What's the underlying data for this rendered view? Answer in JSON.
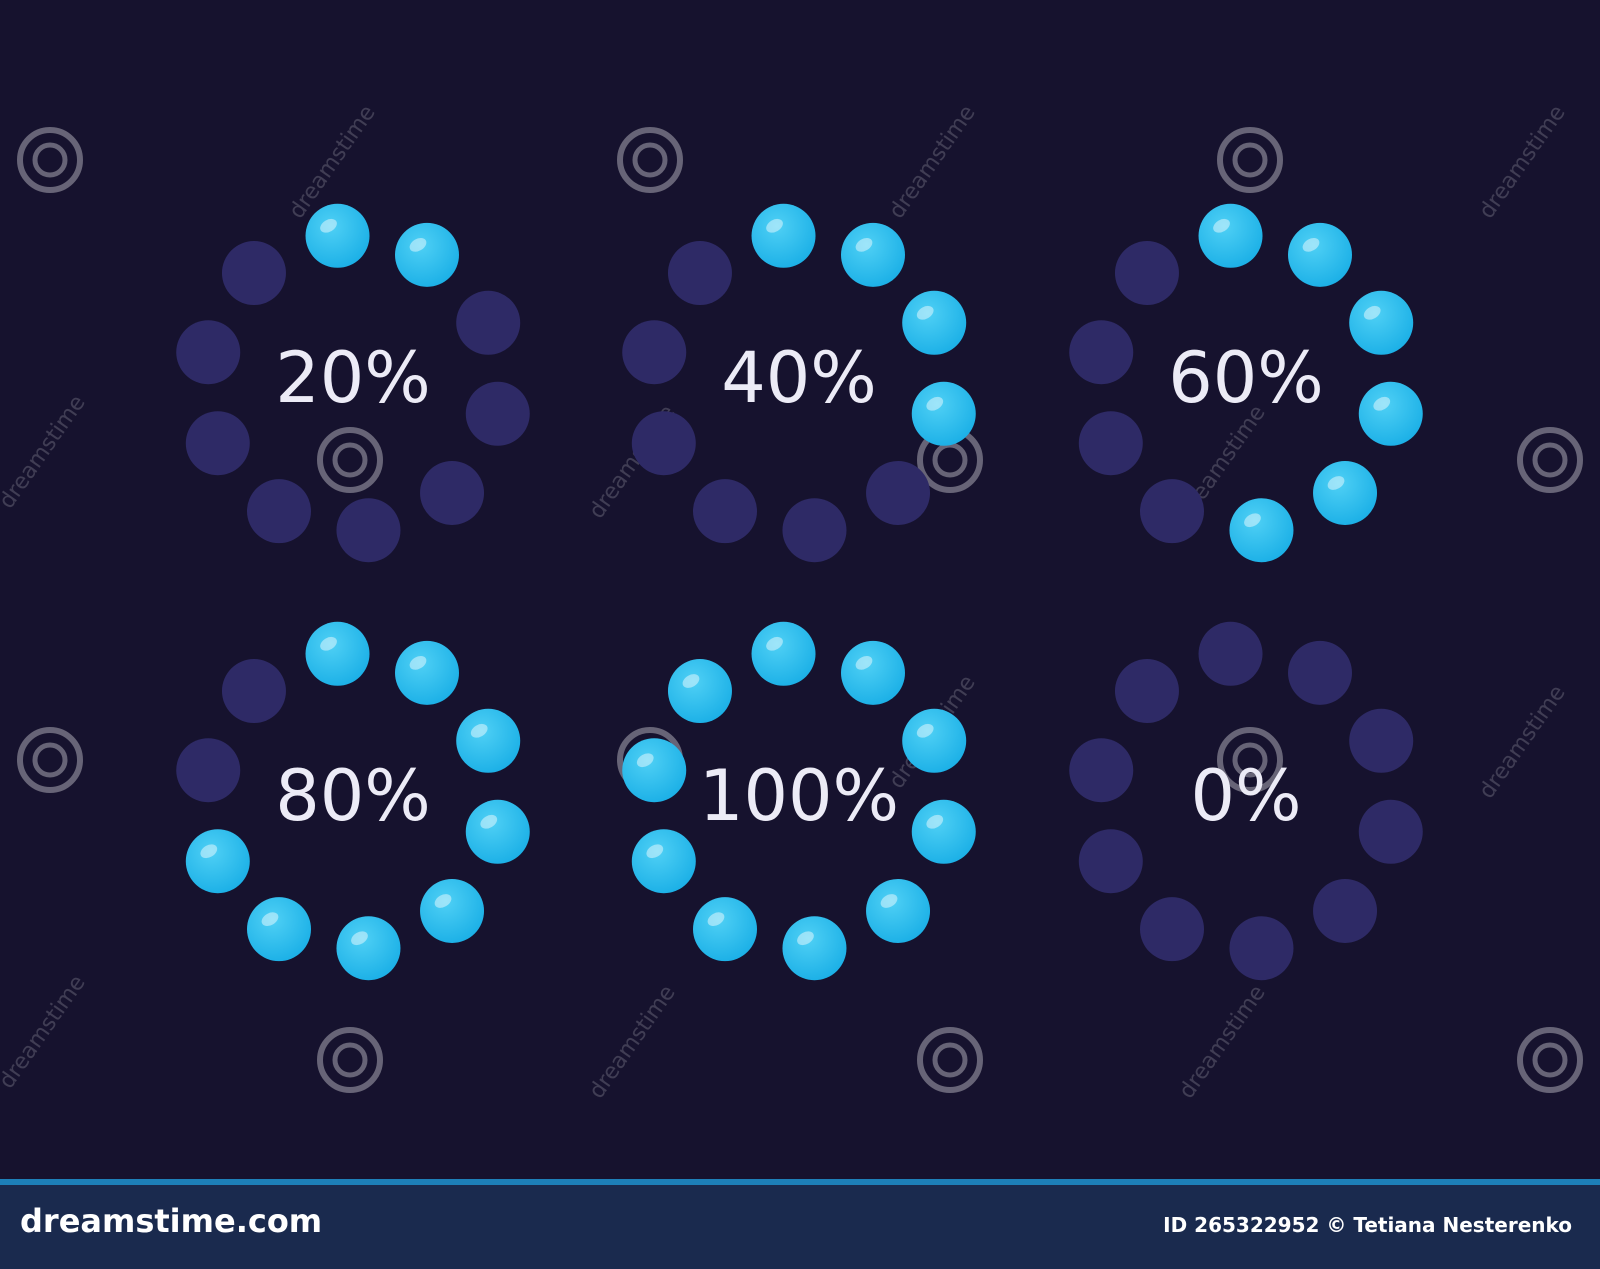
{
  "indicators": [
    {
      "label": "20%",
      "value": 20
    },
    {
      "label": "40%",
      "value": 40
    },
    {
      "label": "60%",
      "value": 60
    },
    {
      "label": "80%",
      "value": 80
    },
    {
      "label": "100%",
      "value": 100
    },
    {
      "label": "0%",
      "value": 0
    }
  ],
  "watermark": "dreamstime",
  "footer": {
    "site": "dreamstime.com",
    "credit": "ID 265322952 © Tetiana Nesterenko"
  }
}
